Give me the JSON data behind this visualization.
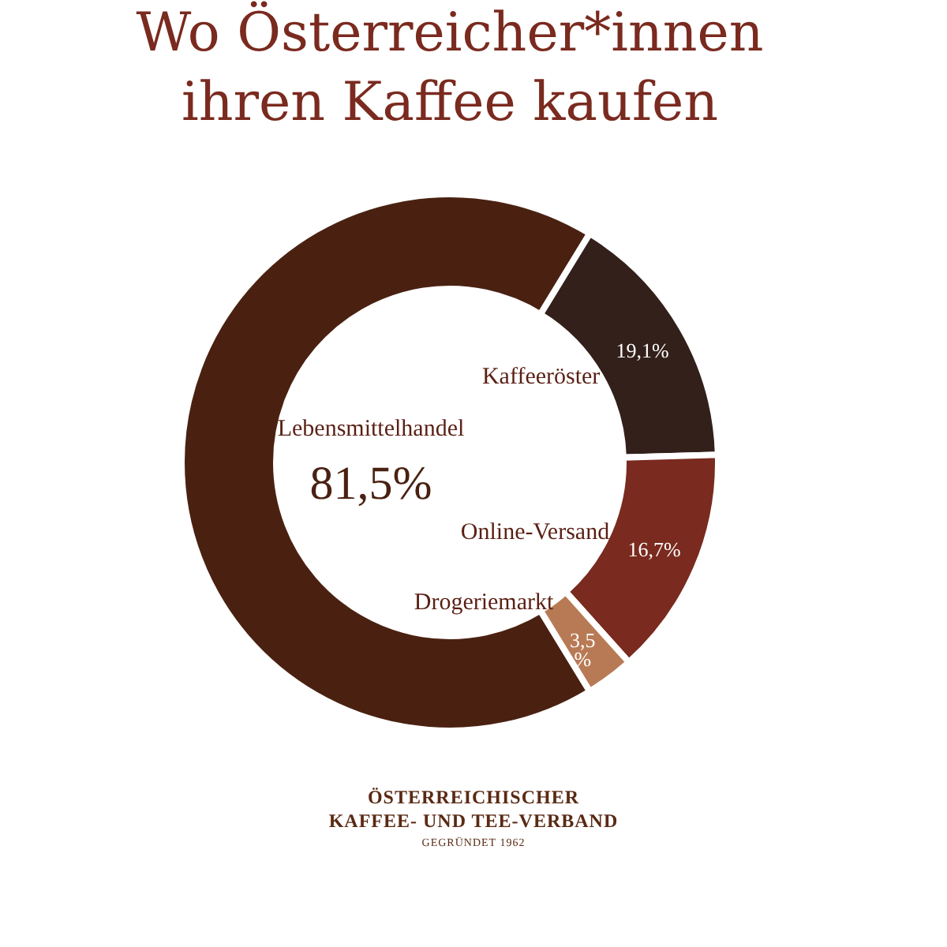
{
  "chart_data": {
    "type": "donut",
    "title": "Wo Österreicher*innen ihren Kaffee kaufen",
    "categories": [
      "Lebensmittelhandel",
      "Kaffeeröster",
      "Online-Versand",
      "Drogeriemarkt"
    ],
    "values": [
      81.5,
      19.1,
      16.7,
      3.5
    ],
    "value_labels": [
      "81,5%",
      "19,1%",
      "16,7%",
      "3,5 %"
    ],
    "colors": [
      "#4a2111",
      "#33201a",
      "#7a2a1f",
      "#b87a55"
    ],
    "annotations": [
      "ÖSTERREICHISCHER",
      "KAFFEE- UND TEE-VERBAND",
      "GEGRÜNDET 1962"
    ]
  }
}
